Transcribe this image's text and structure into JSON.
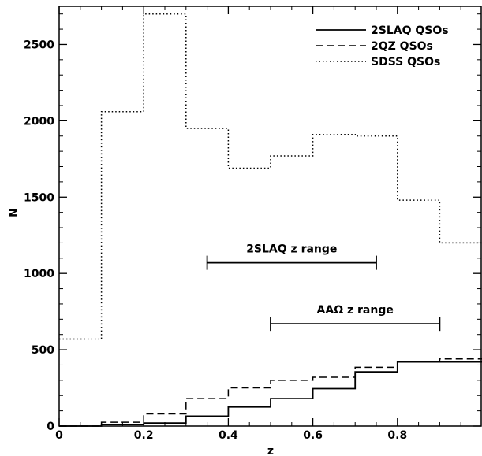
{
  "chart_data": {
    "type": "line",
    "style": "step-histogram",
    "xlabel": "z",
    "ylabel": "N",
    "xlim": [
      0,
      1
    ],
    "ylim": [
      0,
      2750
    ],
    "x_ticks": [
      0,
      0.2,
      0.4,
      0.6,
      0.8
    ],
    "x_tick_labels": [
      "0",
      "0.2",
      "0.4",
      "0.6",
      "0.8"
    ],
    "y_ticks": [
      0,
      500,
      1000,
      1500,
      2000,
      2500
    ],
    "y_tick_labels": [
      "0",
      "500",
      "1000",
      "1500",
      "2000",
      "2500"
    ],
    "grid": false,
    "legend_position": "top-right",
    "bin_edges": [
      0,
      0.1,
      0.2,
      0.3,
      0.4,
      0.5,
      0.6,
      0.7,
      0.8,
      0.9,
      1.0
    ],
    "series": [
      {
        "name": "2SLAQ QSOs",
        "line_style": "solid",
        "values": [
          0,
          10,
          20,
          65,
          125,
          180,
          245,
          355,
          420,
          420
        ]
      },
      {
        "name": "2QZ QSOs",
        "line_style": "dashed",
        "values": [
          0,
          25,
          80,
          180,
          250,
          300,
          320,
          385,
          420,
          440
        ]
      },
      {
        "name": "SDSS QSOs",
        "line_style": "dotted",
        "values": [
          570,
          2060,
          2700,
          1950,
          1690,
          1770,
          1910,
          1900,
          1480,
          1200
        ]
      }
    ],
    "annotations": [
      {
        "label": "2SLAQ z range",
        "x_start": 0.35,
        "x_end": 0.75,
        "y": 1070
      },
      {
        "label": "AAΩ z range",
        "x_start": 0.5,
        "x_end": 0.9,
        "y": 670
      }
    ]
  }
}
